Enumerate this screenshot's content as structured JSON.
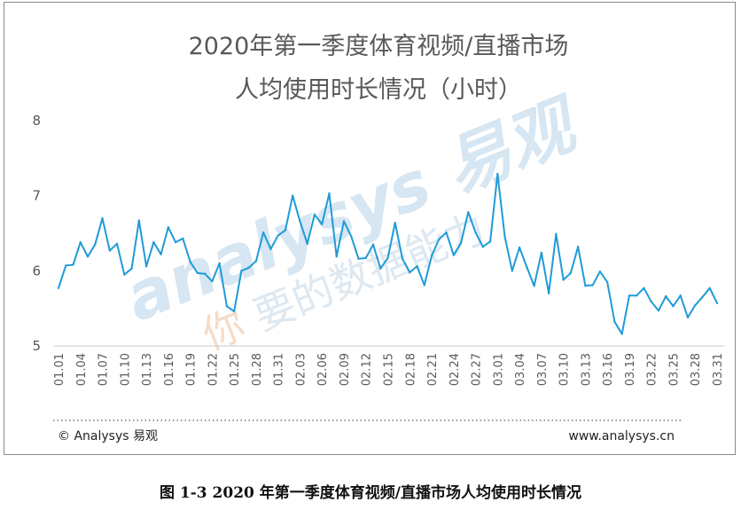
{
  "chart_data": {
    "type": "line",
    "title": "2020年第一季度体育视频/直播市场",
    "subtitle": "人均使用时长情况（小时）",
    "ylim": [
      5,
      8
    ],
    "yticks": [
      5,
      6,
      7,
      8
    ],
    "grid": false,
    "legend": "none",
    "line_color": "#1f9bd7",
    "x": [
      "01.01",
      "01.02",
      "01.03",
      "01.04",
      "01.05",
      "01.06",
      "01.07",
      "01.08",
      "01.09",
      "01.10",
      "01.11",
      "01.12",
      "01.13",
      "01.14",
      "01.15",
      "01.16",
      "01.17",
      "01.18",
      "01.19",
      "01.20",
      "01.21",
      "01.22",
      "01.23",
      "01.24",
      "01.25",
      "01.26",
      "01.27",
      "01.28",
      "01.29",
      "01.30",
      "01.31",
      "02.01",
      "02.02",
      "02.03",
      "02.04",
      "02.05",
      "02.06",
      "02.07",
      "02.08",
      "02.09",
      "02.10",
      "02.11",
      "02.12",
      "02.13",
      "02.14",
      "02.15",
      "02.16",
      "02.17",
      "02.18",
      "02.19",
      "02.20",
      "02.21",
      "02.22",
      "02.23",
      "02.24",
      "02.25",
      "02.26",
      "02.27",
      "02.28",
      "02.29",
      "03.01",
      "03.02",
      "03.03",
      "03.04",
      "03.05",
      "03.06",
      "03.07",
      "03.08",
      "03.09",
      "03.10",
      "03.11",
      "03.12",
      "03.13",
      "03.14",
      "03.15",
      "03.16",
      "03.17",
      "03.18",
      "03.19",
      "03.20",
      "03.21",
      "03.22",
      "03.23",
      "03.24",
      "03.25",
      "03.26",
      "03.27",
      "03.28",
      "03.29",
      "03.30",
      "03.31"
    ],
    "xtick_labels": [
      "01.01",
      "01.04",
      "01.07",
      "01.10",
      "01.13",
      "01.16",
      "01.19",
      "01.22",
      "01.25",
      "01.28",
      "01.31",
      "02.03",
      "02.06",
      "02.09",
      "02.12",
      "02.15",
      "02.18",
      "02.21",
      "02.24",
      "02.27",
      "03.01",
      "03.04",
      "03.07",
      "03.10",
      "03.13",
      "03.16",
      "03.19",
      "03.22",
      "03.25",
      "03.28",
      "03.31"
    ],
    "series": [
      {
        "values": [
          5.77,
          6.07,
          6.08,
          6.38,
          6.19,
          6.35,
          6.7,
          6.27,
          6.36,
          5.95,
          6.03,
          6.67,
          6.06,
          6.38,
          6.22,
          6.58,
          6.38,
          6.43,
          6.12,
          5.97,
          5.96,
          5.86,
          6.1,
          5.53,
          5.46,
          6.0,
          6.04,
          6.13,
          6.51,
          6.29,
          6.47,
          6.54,
          7.0,
          6.66,
          6.36,
          6.75,
          6.62,
          7.03,
          6.19,
          6.66,
          6.46,
          6.16,
          6.17,
          6.35,
          6.03,
          6.17,
          6.64,
          6.16,
          5.98,
          6.06,
          5.81,
          6.2,
          6.42,
          6.51,
          6.21,
          6.37,
          6.78,
          6.51,
          6.32,
          6.39,
          7.29,
          6.45,
          6.0,
          6.31,
          6.05,
          5.8,
          6.24,
          5.7,
          6.49,
          5.88,
          5.97,
          6.32,
          5.8,
          5.81,
          5.99,
          5.85,
          5.32,
          5.16,
          5.67,
          5.67,
          5.77,
          5.59,
          5.47,
          5.66,
          5.53,
          5.67,
          5.38,
          5.54,
          5.65,
          5.77,
          5.57
        ]
      }
    ]
  },
  "watermark": {
    "brand": "analysys 易观",
    "slogan_part1": "你",
    "slogan_part2": "要的数据能力"
  },
  "footer": {
    "copyright": "© Analysys 易观",
    "website": "www.analysys.cn"
  },
  "caption": "图 1-3 2020 年第一季度体育视频/直播市场人均使用时长情况"
}
